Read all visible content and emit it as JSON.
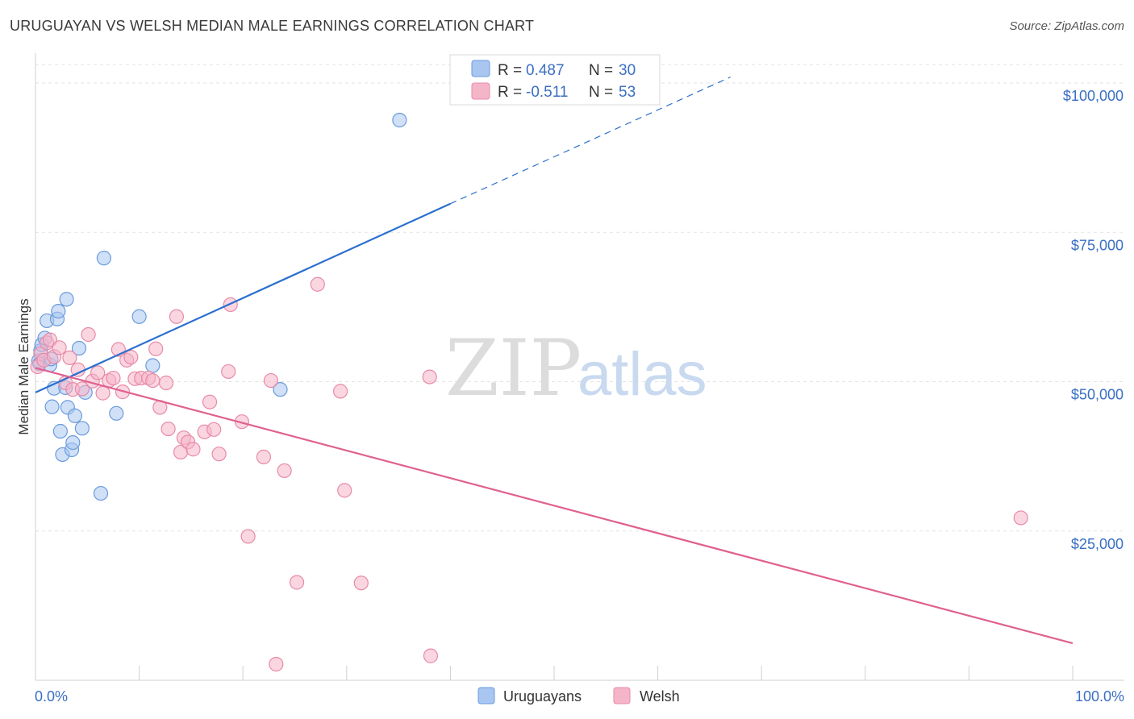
{
  "title": "URUGUAYAN VS WELSH MEDIAN MALE EARNINGS CORRELATION CHART",
  "source": "Source: ZipAtlas.com",
  "watermark": {
    "part1": "ZIP",
    "part2": "atlas"
  },
  "chart_data": {
    "type": "scatter",
    "title": "URUGUAYAN VS WELSH MEDIAN MALE EARNINGS CORRELATION CHART",
    "xlabel": "",
    "ylabel": "Median Male Earnings",
    "xlim": [
      0,
      100
    ],
    "ylim": [
      0,
      105000
    ],
    "x_tick_labels": {
      "min": "0.0%",
      "max": "100.0%"
    },
    "y_ticks": [
      {
        "value": 25000,
        "label": "$25,000"
      },
      {
        "value": 50000,
        "label": "$50,000"
      },
      {
        "value": 75000,
        "label": "$75,000"
      },
      {
        "value": 100000,
        "label": "$100,000"
      }
    ],
    "grid": true,
    "legend": {
      "position": "top-center",
      "rows": [
        {
          "r_label": "R = ",
          "r_value": "0.487",
          "n_label": "N = ",
          "n_value": "30",
          "color": "#a9c6f0"
        },
        {
          "r_label": "R = ",
          "r_value": "-0.511",
          "n_label": "N = ",
          "n_value": "53",
          "color": "#f5b5c9"
        }
      ]
    },
    "series": [
      {
        "name": "Uruguayans",
        "color": "#a9c6f0",
        "stroke": "#6a9bdc",
        "trend": {
          "x0": 0,
          "y0": 48200,
          "x1": 40,
          "y1": 79800,
          "dash_x1": 67,
          "dash_y1": 101000,
          "color": "#2b6fcf"
        },
        "points": [
          [
            0.3,
            53500
          ],
          [
            0.4,
            53000
          ],
          [
            0.5,
            55200
          ],
          [
            0.6,
            56200
          ],
          [
            0.9,
            57300
          ],
          [
            1.1,
            60200
          ],
          [
            1.4,
            52800
          ],
          [
            1.5,
            53800
          ],
          [
            1.6,
            45800
          ],
          [
            1.8,
            48900
          ],
          [
            2.1,
            60500
          ],
          [
            2.2,
            61800
          ],
          [
            2.4,
            41700
          ],
          [
            2.6,
            37800
          ],
          [
            2.9,
            49000
          ],
          [
            3.0,
            63800
          ],
          [
            3.1,
            45700
          ],
          [
            3.5,
            38600
          ],
          [
            3.6,
            39800
          ],
          [
            3.8,
            44300
          ],
          [
            4.2,
            55600
          ],
          [
            4.5,
            42200
          ],
          [
            4.8,
            48200
          ],
          [
            6.3,
            31300
          ],
          [
            6.6,
            70700
          ],
          [
            7.8,
            44700
          ],
          [
            10.0,
            60900
          ],
          [
            11.3,
            52700
          ],
          [
            23.6,
            48700
          ],
          [
            35.1,
            93800
          ]
        ]
      },
      {
        "name": "Welsh",
        "color": "#f5b5c9",
        "stroke": "#e88aa8",
        "trend": {
          "x0": 0,
          "y0": 52300,
          "x1": 100,
          "y1": 6200,
          "color": "#e0608f"
        },
        "points": [
          [
            0.2,
            52500
          ],
          [
            0.5,
            54700
          ],
          [
            0.8,
            53600
          ],
          [
            1.1,
            56500
          ],
          [
            1.4,
            57000
          ],
          [
            1.8,
            54200
          ],
          [
            2.3,
            55700
          ],
          [
            2.9,
            49800
          ],
          [
            3.3,
            54000
          ],
          [
            3.6,
            48700
          ],
          [
            4.1,
            52000
          ],
          [
            4.5,
            48800
          ],
          [
            5.1,
            57900
          ],
          [
            5.5,
            50100
          ],
          [
            6.0,
            51500
          ],
          [
            6.5,
            48100
          ],
          [
            7.1,
            50200
          ],
          [
            7.5,
            50600
          ],
          [
            8.0,
            55400
          ],
          [
            8.4,
            48300
          ],
          [
            8.8,
            53600
          ],
          [
            9.2,
            54100
          ],
          [
            9.6,
            50500
          ],
          [
            10.2,
            50600
          ],
          [
            10.9,
            50600
          ],
          [
            11.3,
            50200
          ],
          [
            11.6,
            55500
          ],
          [
            12.0,
            45700
          ],
          [
            12.6,
            49800
          ],
          [
            12.8,
            42100
          ],
          [
            13.6,
            60900
          ],
          [
            14.0,
            38200
          ],
          [
            14.3,
            40600
          ],
          [
            14.7,
            39900
          ],
          [
            15.2,
            38700
          ],
          [
            16.3,
            41600
          ],
          [
            16.8,
            46600
          ],
          [
            17.2,
            42000
          ],
          [
            17.7,
            37900
          ],
          [
            18.6,
            51700
          ],
          [
            18.8,
            62900
          ],
          [
            19.9,
            43300
          ],
          [
            20.5,
            24100
          ],
          [
            22.0,
            37400
          ],
          [
            22.7,
            50200
          ],
          [
            24.0,
            35100
          ],
          [
            25.2,
            16400
          ],
          [
            27.2,
            66300
          ],
          [
            29.4,
            48400
          ],
          [
            29.8,
            31800
          ],
          [
            31.4,
            16300
          ],
          [
            38.0,
            50800
          ],
          [
            95.0,
            27200
          ]
        ]
      }
    ],
    "extra_points": [
      {
        "series": "Welsh",
        "x": 23.2,
        "y": 2700
      },
      {
        "series": "Welsh",
        "x": 38.1,
        "y": 4100
      }
    ]
  },
  "bottom_legend": [
    {
      "label": "Uruguayans",
      "color": "#a9c6f0"
    },
    {
      "label": "Welsh",
      "color": "#f5b5c9"
    }
  ]
}
